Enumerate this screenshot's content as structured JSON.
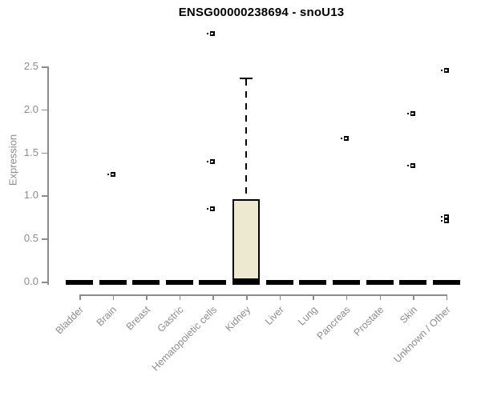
{
  "chart_data": {
    "type": "boxplot",
    "title": "ENSG00000238694 - snoU13",
    "ylabel": "Expression",
    "ylim": [
      0,
      2.5
    ],
    "ytick_labels": [
      "0.0",
      "0.5",
      "1.0",
      "1.5",
      "2.0",
      "2.5"
    ],
    "grid": false,
    "legend": "none",
    "categories": [
      "Bladder",
      "Brain",
      "Breast",
      "Gastric",
      "Hematopoietic cells",
      "Kidney",
      "Liver",
      "Lung",
      "Pancreas",
      "Prostate",
      "Skin",
      "Unknown / Other"
    ],
    "boxes": [
      {
        "category": "Bladder",
        "median": 0,
        "q1": 0,
        "q3": 0,
        "whisker_low": 0,
        "whisker_high": 0,
        "outliers": []
      },
      {
        "category": "Brain",
        "median": 0,
        "q1": 0,
        "q3": 0,
        "whisker_low": 0,
        "whisker_high": 0,
        "outliers": [
          1.25
        ]
      },
      {
        "category": "Breast",
        "median": 0,
        "q1": 0,
        "q3": 0,
        "whisker_low": 0,
        "whisker_high": 0,
        "outliers": []
      },
      {
        "category": "Gastric",
        "median": 0,
        "q1": 0,
        "q3": 0,
        "whisker_low": 0,
        "whisker_high": 0,
        "outliers": []
      },
      {
        "category": "Hematopoietic cells",
        "median": 0,
        "q1": 0,
        "q3": 0,
        "whisker_low": 0,
        "whisker_high": 0,
        "outliers": [
          2.88,
          1.39,
          0.85
        ]
      },
      {
        "category": "Kidney",
        "median": 0.02,
        "q1": 0,
        "q3": 0.96,
        "whisker_low": 0,
        "whisker_high": 2.37,
        "outliers": []
      },
      {
        "category": "Liver",
        "median": 0,
        "q1": 0,
        "q3": 0,
        "whisker_low": 0,
        "whisker_high": 0,
        "outliers": []
      },
      {
        "category": "Lung",
        "median": 0,
        "q1": 0,
        "q3": 0,
        "whisker_low": 0,
        "whisker_high": 0,
        "outliers": []
      },
      {
        "category": "Pancreas",
        "median": 0,
        "q1": 0,
        "q3": 0,
        "whisker_low": 0,
        "whisker_high": 0,
        "outliers": [
          1.66
        ]
      },
      {
        "category": "Prostate",
        "median": 0,
        "q1": 0,
        "q3": 0,
        "whisker_low": 0,
        "whisker_high": 0,
        "outliers": []
      },
      {
        "category": "Skin",
        "median": 0,
        "q1": 0,
        "q3": 0,
        "whisker_low": 0,
        "whisker_high": 0,
        "outliers": [
          1.95,
          1.35
        ]
      },
      {
        "category": "Unknown / Other",
        "median": 0,
        "q1": 0,
        "q3": 0,
        "whisker_low": 0,
        "whisker_high": 0,
        "outliers": [
          2.45,
          0.75,
          0.71
        ]
      }
    ],
    "colors": {
      "background": "#ffffff",
      "title": "#000000",
      "axis": "#8c8c8c",
      "box_fill": "#ede8d0",
      "box_border": "#000000",
      "median": "#000000",
      "outlier": "#000000"
    }
  }
}
